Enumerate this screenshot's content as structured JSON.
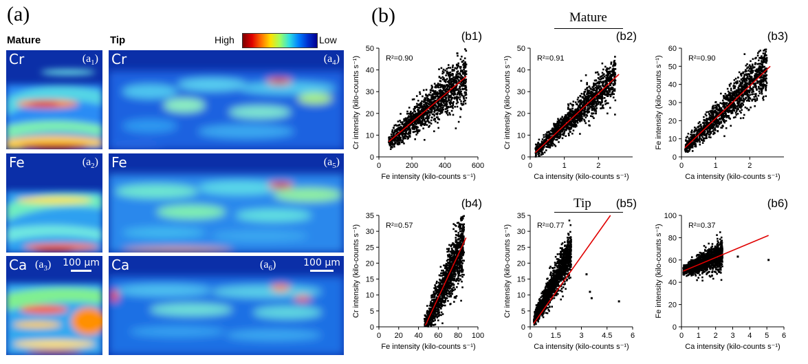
{
  "labels": {
    "panel_a": "(a)",
    "panel_b": "(b)",
    "mature": "Mature",
    "tip": "Tip"
  },
  "colorbar": {
    "high": "High",
    "low": "Low"
  },
  "maps": [
    {
      "element": "Cr",
      "sub": "a",
      "idx": "1"
    },
    {
      "element": "Fe",
      "sub": "a",
      "idx": "2"
    },
    {
      "element": "Ca",
      "sub": "a",
      "idx": "3"
    },
    {
      "element": "Cr",
      "sub": "a",
      "idx": "4"
    },
    {
      "element": "Fe",
      "sub": "a",
      "idx": "5"
    },
    {
      "element": "Ca",
      "sub": "a",
      "idx": "6"
    }
  ],
  "scale_bar": "100 μm",
  "group_labels": {
    "mature": "Mature",
    "tip": "Tip"
  },
  "chart_data": [
    {
      "id": "b1",
      "type": "scatter",
      "panel": "(b1)",
      "r2": "R²=0.90",
      "xlabel": "Fe intensity (kilo-counts s⁻¹)",
      "ylabel": "Cr intensity (kilo-counts s⁻¹)",
      "xlim": [
        0,
        600
      ],
      "ylim": [
        0,
        50
      ],
      "xticks": [
        "0",
        "200",
        "400",
        "600"
      ],
      "yticks": [
        "0",
        "10",
        "20",
        "30",
        "40",
        "50"
      ],
      "fit": [
        [
          60,
          7
        ],
        [
          530,
          37
        ]
      ],
      "cloud": {
        "x_range": [
          60,
          530
        ],
        "slope": 0.064,
        "intercept": 3.2,
        "spread": 4.5
      }
    },
    {
      "id": "b2",
      "type": "scatter",
      "panel": "(b2)",
      "r2": "R²=0.91",
      "xlabel": "Ca intensity (kilo-counts s⁻¹)",
      "ylabel": "Cr intensity (kilo-counts s⁻¹)",
      "xlim": [
        0,
        3
      ],
      "ylim": [
        0,
        50
      ],
      "xticks": [
        "0",
        "1",
        "2"
      ],
      "yticks": [
        "0",
        "10",
        "20",
        "30",
        "40",
        "50"
      ],
      "fit": [
        [
          0.15,
          2
        ],
        [
          2.6,
          38
        ]
      ],
      "cloud": {
        "x_range": [
          0.15,
          2.5
        ],
        "slope": 14.8,
        "intercept": 0.0,
        "spread": 3.5
      }
    },
    {
      "id": "b3",
      "type": "scatter",
      "panel": "(b3)",
      "r2": "R²=0.90",
      "xlabel": "Ca intensity (kilo-counts s⁻¹)",
      "ylabel": "Fe intensity (kilo-counts s⁻¹)",
      "xlim": [
        0,
        3
      ],
      "ylim": [
        0,
        60
      ],
      "xticks": [
        "0",
        "1",
        "2"
      ],
      "yticks": [
        "0",
        "10",
        "20",
        "30",
        "40",
        "50",
        "60"
      ],
      "fit": [
        [
          0.1,
          5
        ],
        [
          2.6,
          50
        ]
      ],
      "cloud": {
        "x_range": [
          0.1,
          2.5
        ],
        "slope": 18.5,
        "intercept": 3.0,
        "spread": 5.0
      }
    },
    {
      "id": "b4",
      "type": "scatter",
      "panel": "(b4)",
      "r2": "R²=0.57",
      "xlabel": "Fe intensity (kilo-counts s⁻¹)",
      "ylabel": "Cr intensity (kilo-counts s⁻¹)",
      "xlim": [
        0,
        100
      ],
      "ylim": [
        0,
        35
      ],
      "xticks": [
        "0",
        "20",
        "40",
        "60",
        "80",
        "100"
      ],
      "yticks": [
        "0",
        "5",
        "10",
        "15",
        "20",
        "25",
        "30",
        "35"
      ],
      "fit": [
        [
          47,
          0.5
        ],
        [
          88,
          28
        ]
      ],
      "cloud": {
        "x_range": [
          46,
          86
        ],
        "slope": 0.66,
        "intercept": -30.5,
        "spread": 4.0
      }
    },
    {
      "id": "b5",
      "type": "scatter",
      "panel": "(b5)",
      "r2": "R²=0.77",
      "xlabel": "Ca intensity (kilo-counts s⁻¹)",
      "ylabel": "Cr intensity (kilo-counts s⁻¹)",
      "xlim": [
        0,
        6
      ],
      "ylim": [
        0,
        35
      ],
      "xticks": [
        "0",
        "1.5",
        "3",
        "4.5",
        "6"
      ],
      "yticks": [
        "0",
        "5",
        "10",
        "15",
        "20",
        "25",
        "30",
        "35"
      ],
      "fit": [
        [
          0.2,
          1
        ],
        [
          4.7,
          35
        ]
      ],
      "cloud": {
        "x_range": [
          0.2,
          2.4
        ],
        "slope": 10.0,
        "intercept": 0.0,
        "spread": 2.5
      },
      "outliers": [
        [
          3.3,
          16.5
        ],
        [
          3.5,
          11
        ],
        [
          3.6,
          9
        ],
        [
          5.2,
          8
        ]
      ]
    },
    {
      "id": "b6",
      "type": "scatter",
      "panel": "(b6)",
      "r2": "R²=0.37",
      "xlabel": "Ca intensity (kilo-counts s⁻¹)",
      "ylabel": "Fe intensity (kilo-counts s⁻¹)",
      "xlim": [
        0,
        6
      ],
      "ylim": [
        0,
        100
      ],
      "xticks": [
        "0",
        "1",
        "2",
        "3",
        "4",
        "5",
        "6"
      ],
      "yticks": [
        "0",
        "20",
        "40",
        "60",
        "80",
        "100"
      ],
      "fit": [
        [
          0.1,
          50
        ],
        [
          5.1,
          82
        ]
      ],
      "cloud": {
        "x_range": [
          0.1,
          2.4
        ],
        "slope": 6.0,
        "intercept": 50.0,
        "spread": 5.0
      },
      "outliers": [
        [
          3.3,
          63
        ],
        [
          5.1,
          60
        ]
      ]
    }
  ]
}
